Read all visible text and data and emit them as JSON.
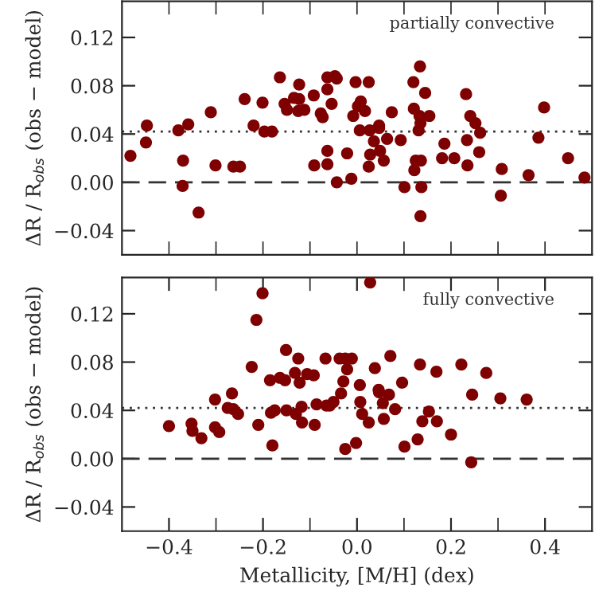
{
  "chart_data": [
    {
      "type": "scatter",
      "ylabel": "ΔR / R$_{obs}$ (obs − model)",
      "annotations": [
        "partially convective"
      ],
      "tick_labels": "y",
      "marker": "circle",
      "grid": false,
      "legend": false,
      "xlim": [
        -0.5,
        0.5
      ],
      "ylim": [
        -0.06,
        0.15
      ],
      "xticks": [
        {
          "value": -0.4,
          "label": null
        },
        {
          "value": -0.3,
          "label": null
        },
        {
          "value": -0.2,
          "label": null
        },
        {
          "value": -0.1,
          "label": null
        },
        {
          "value": 0.0,
          "label": null
        },
        {
          "value": 0.1,
          "label": null
        },
        {
          "value": 0.2,
          "label": null
        },
        {
          "value": 0.3,
          "label": null
        },
        {
          "value": 0.4,
          "label": null
        }
      ],
      "yticks": [
        {
          "value": -0.04,
          "label": "−0.04"
        },
        {
          "value": 0.0,
          "label": "0.00"
        },
        {
          "value": 0.04,
          "label": "0.04"
        },
        {
          "value": 0.08,
          "label": "0.08"
        },
        {
          "value": 0.12,
          "label": "0.12"
        }
      ],
      "ref_lines": [
        {
          "axis": "y",
          "value": 0.042,
          "line_style": "dotted",
          "color": "#333333"
        },
        {
          "axis": "y",
          "value": 0.0,
          "line_style": "dashed",
          "color": "#333333"
        }
      ],
      "series": [
        {
          "color": "#7f0000",
          "x": [
            -0.482,
            -0.447,
            -0.449,
            -0.38,
            -0.37,
            -0.371,
            -0.359,
            -0.337,
            -0.311,
            -0.301,
            -0.263,
            -0.249,
            -0.239,
            -0.22,
            -0.201,
            -0.197,
            -0.181,
            -0.164,
            -0.154,
            -0.149,
            -0.134,
            -0.123,
            -0.123,
            -0.125,
            -0.112,
            -0.092,
            -0.091,
            -0.077,
            -0.073,
            -0.063,
            -0.063,
            -0.063,
            -0.063,
            -0.054,
            -0.047,
            -0.043,
            -0.043,
            -0.021,
            -0.012,
            -0.008,
            -0.003,
            0.002,
            0.008,
            0.006,
            0.017,
            0.025,
            0.027,
            0.025,
            0.028,
            0.036,
            0.047,
            0.047,
            0.049,
            0.057,
            0.064,
            0.074,
            0.093,
            0.101,
            0.12,
            0.121,
            0.122,
            0.125,
            0.131,
            0.133,
            0.134,
            0.136,
            0.137,
            0.135,
            0.145,
            0.154,
            0.135,
            0.181,
            0.186,
            0.207,
            0.232,
            0.234,
            0.235,
            0.241,
            0.252,
            0.262,
            0.26,
            0.308,
            0.306,
            0.365,
            0.386,
            0.398,
            0.449,
            0.484
          ],
          "values": [
            0.022,
            0.047,
            0.033,
            0.043,
            0.018,
            -0.003,
            0.048,
            -0.025,
            0.058,
            0.014,
            0.013,
            0.013,
            0.069,
            0.047,
            0.066,
            0.042,
            0.042,
            0.087,
            0.065,
            0.06,
            0.07,
            0.069,
            0.081,
            0.059,
            0.06,
            0.072,
            0.014,
            0.057,
            0.054,
            0.087,
            0.077,
            0.026,
            0.015,
            0.065,
            0.088,
            0.086,
            0.0,
            0.024,
            0.003,
            0.055,
            0.083,
            0.063,
            0.067,
            0.043,
            0.059,
            0.083,
            0.043,
            0.013,
            0.023,
            0.034,
            0.047,
            0.045,
            0.026,
            0.018,
            0.036,
            0.058,
            0.035,
            -0.004,
            0.083,
            0.061,
            0.01,
            0.018,
            0.043,
            0.055,
            0.096,
            0.018,
            -0.004,
            -0.028,
            0.074,
            0.055,
            0.049,
            0.02,
            0.032,
            0.02,
            0.073,
            0.035,
            0.014,
            0.055,
            0.049,
            0.041,
            0.025,
            0.011,
            -0.011,
            0.006,
            0.037,
            0.062,
            0.02,
            0.004
          ]
        }
      ]
    },
    {
      "type": "scatter",
      "xlabel": "Metallicity, [M/H] (dex)",
      "ylabel": "ΔR / R$_{obs}$ (obs − model)",
      "annotations": [
        "fully convective"
      ],
      "marker": "circle",
      "grid": false,
      "legend": false,
      "xlim": [
        -0.5,
        0.5
      ],
      "ylim": [
        -0.06,
        0.15
      ],
      "xticks": [
        {
          "value": -0.4,
          "label": "−0.4"
        },
        {
          "value": -0.3,
          "label": null
        },
        {
          "value": -0.2,
          "label": "−0.2"
        },
        {
          "value": -0.1,
          "label": null
        },
        {
          "value": 0.0,
          "label": "0.0"
        },
        {
          "value": 0.1,
          "label": null
        },
        {
          "value": 0.2,
          "label": "0.2"
        },
        {
          "value": 0.3,
          "label": null
        },
        {
          "value": 0.4,
          "label": "0.4"
        }
      ],
      "yticks": [
        {
          "value": -0.04,
          "label": "−0.04"
        },
        {
          "value": 0.0,
          "label": "0.00"
        },
        {
          "value": 0.04,
          "label": "0.04"
        },
        {
          "value": 0.08,
          "label": "0.08"
        },
        {
          "value": 0.12,
          "label": "0.12"
        }
      ],
      "ref_lines": [
        {
          "axis": "y",
          "value": 0.042,
          "line_style": "dotted",
          "color": "#333333"
        },
        {
          "axis": "y",
          "value": 0.0,
          "line_style": "dashed",
          "color": "#333333"
        }
      ],
      "series": [
        {
          "color": "#7f0000",
          "x": [
            -0.4,
            -0.352,
            -0.35,
            -0.331,
            -0.302,
            -0.302,
            -0.293,
            -0.266,
            -0.275,
            -0.263,
            -0.253,
            -0.224,
            -0.214,
            -0.201,
            0.028,
            -0.21,
            -0.185,
            -0.18,
            -0.183,
            -0.175,
            -0.164,
            -0.153,
            -0.151,
            -0.15,
            -0.132,
            -0.13,
            -0.125,
            -0.122,
            -0.118,
            -0.117,
            -0.106,
            -0.092,
            -0.09,
            -0.086,
            -0.067,
            -0.065,
            -0.058,
            -0.05,
            -0.037,
            -0.034,
            -0.029,
            -0.025,
            -0.021,
            -0.011,
            -0.025,
            -0.002,
            0.006,
            0.007,
            0.011,
            0.025,
            0.038,
            0.046,
            0.047,
            0.055,
            0.057,
            0.068,
            0.071,
            0.081,
            0.096,
            0.101,
            0.129,
            0.134,
            0.139,
            0.153,
            0.169,
            0.17,
            0.2,
            0.222,
            0.243,
            0.245,
            0.275,
            0.305,
            0.361
          ],
          "values": [
            0.027,
            0.029,
            0.023,
            0.017,
            0.049,
            0.026,
            0.022,
            0.054,
            0.042,
            0.041,
            0.037,
            0.076,
            0.115,
            0.137,
            0.146,
            0.028,
            0.065,
            0.011,
            0.038,
            0.04,
            0.067,
            0.065,
            0.09,
            0.04,
            0.071,
            0.037,
            0.083,
            0.063,
            0.043,
            0.03,
            0.07,
            0.069,
            0.028,
            0.045,
            0.083,
            0.044,
            0.044,
            0.047,
            0.083,
            0.054,
            0.064,
            0.083,
            0.074,
            0.083,
            0.008,
            0.013,
            0.061,
            0.047,
            0.037,
            0.03,
            0.075,
            0.057,
            0.055,
            0.046,
            0.033,
            0.053,
            0.085,
            0.041,
            0.063,
            0.01,
            0.016,
            0.078,
            0.031,
            0.039,
            0.072,
            0.031,
            0.02,
            0.078,
            -0.003,
            0.053,
            0.071,
            0.05,
            0.049
          ]
        }
      ]
    }
  ]
}
